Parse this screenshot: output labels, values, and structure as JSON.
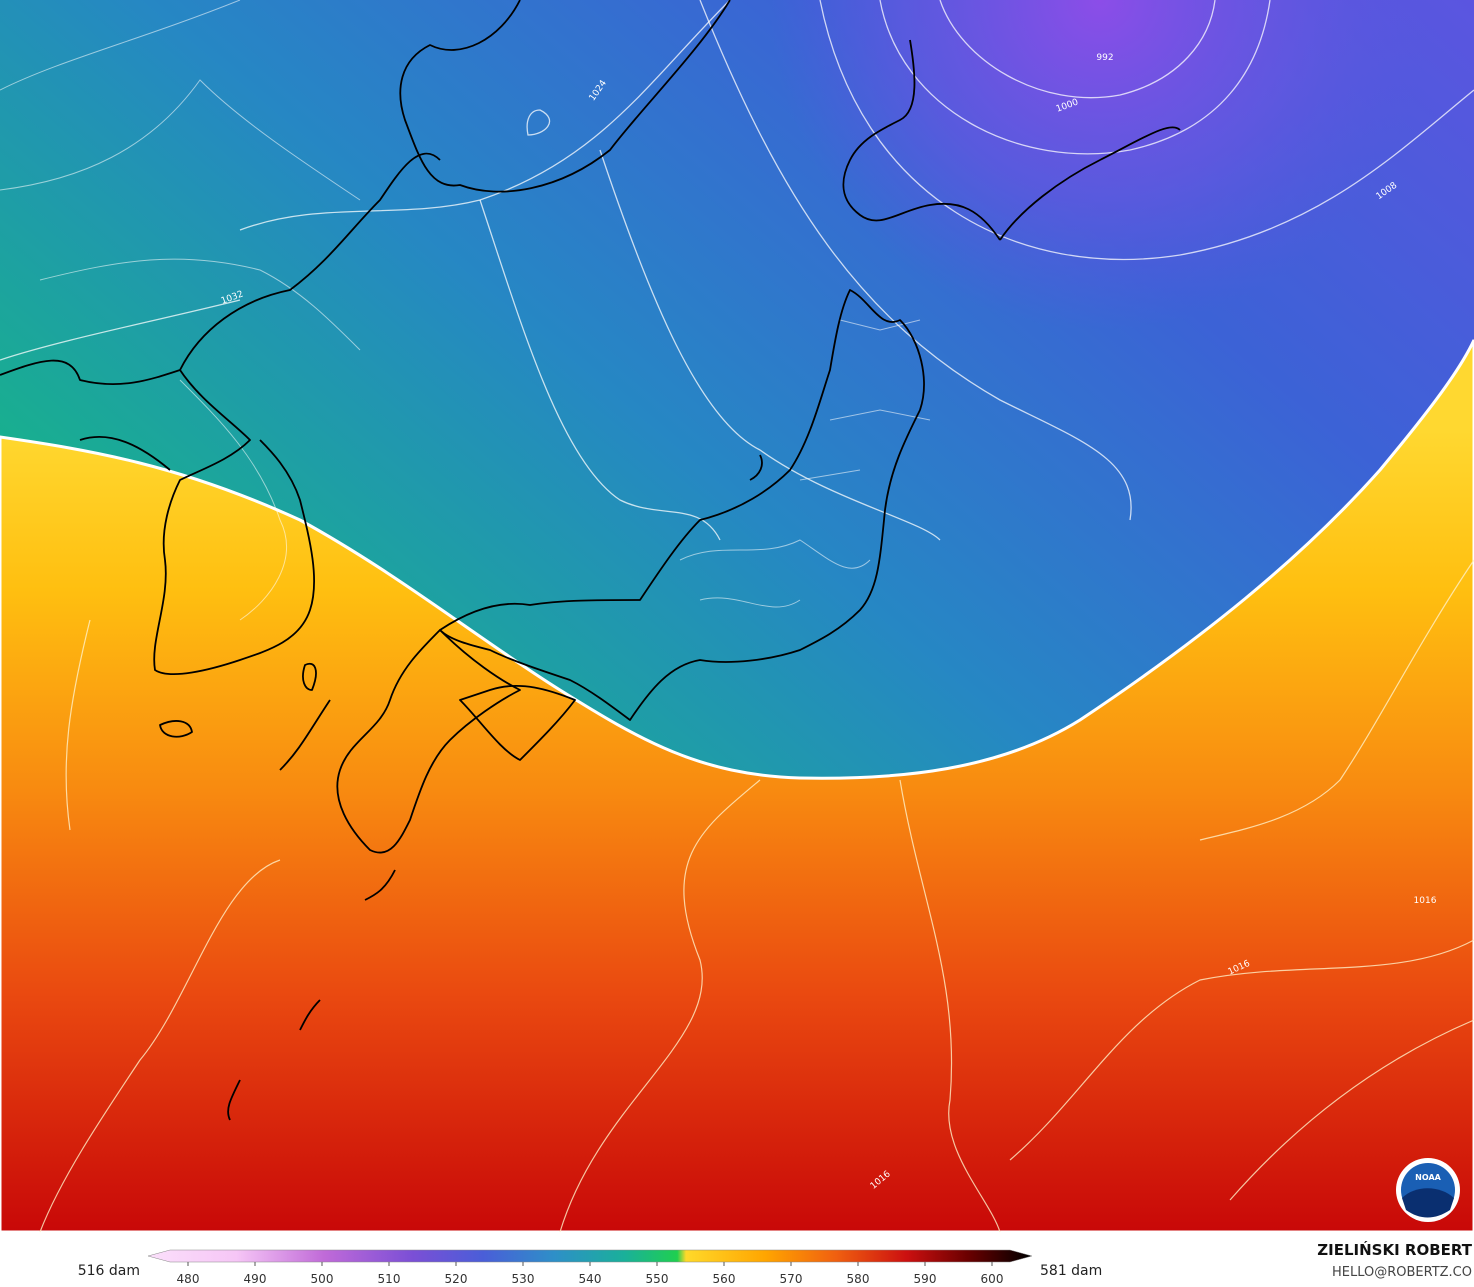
{
  "contour_labels": [
    "992",
    "1000",
    "1008",
    "1016",
    "1016",
    "1016",
    "1024",
    "1032"
  ],
  "colorbar": {
    "ticks": [
      480,
      490,
      500,
      510,
      520,
      530,
      540,
      550,
      560,
      570,
      580,
      590,
      600
    ],
    "left_label": "516 dam",
    "right_label": "581 dam"
  },
  "credit": {
    "author": "ZIELIŃSKI ROBERT",
    "email": "HELLO@ROBERTZ.CO"
  },
  "logo": "NOAA"
}
